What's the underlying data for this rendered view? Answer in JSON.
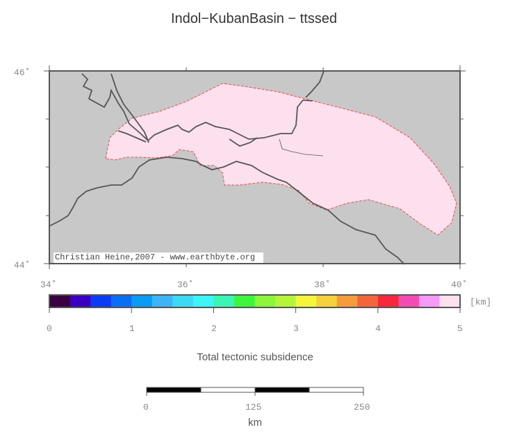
{
  "title": "Indol−KubanBasin − ttssed",
  "map": {
    "lat_labels": [
      "46˚",
      "44˚"
    ],
    "lon_labels": [
      "34˚",
      "36˚",
      "38˚",
      "40˚"
    ],
    "credit": "Christian Heine,2007 - www.earthbyte.org",
    "colors": {
      "land": "#c8c8c8",
      "basin": "#fde0ee",
      "coast": "#555555"
    }
  },
  "colorbar": {
    "unit_label": "[km]",
    "tick_labels": [
      "0",
      "1",
      "2",
      "3",
      "4",
      "5"
    ],
    "title": "Total tectonic subsidence",
    "colors": [
      "#3a0040",
      "#3a00c0",
      "#0a3cf5",
      "#0a6ef5",
      "#0a9bf5",
      "#3cb4f5",
      "#3cd9f5",
      "#3cf5f5",
      "#3cf5b4",
      "#3cf53c",
      "#8cf53c",
      "#b4f53c",
      "#f5f53c",
      "#f5d23c",
      "#f59b3c",
      "#f5643c",
      "#f5283c",
      "#f54bb4",
      "#f59bf5",
      "#fde0ee"
    ]
  },
  "scale_bar": {
    "labels": [
      "0",
      "125",
      "250"
    ],
    "unit": "km"
  }
}
